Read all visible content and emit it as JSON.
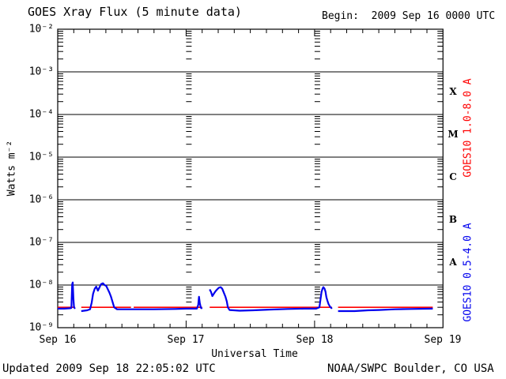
{
  "title": "GOES Xray Flux (5 minute data)",
  "begin_label": "Begin:  2009 Sep 16 0000 UTC",
  "footer": {
    "updated": "Updated 2009 Sep 18 22:05:02 UTC",
    "source": "NOAA/SWPC Boulder, CO USA"
  },
  "axes": {
    "ylabel": "Watts m⁻²",
    "xlabel": "Universal Time",
    "x_tick_labels": [
      "Sep 16",
      "Sep 17",
      "Sep 18",
      "Sep 19"
    ],
    "y_tick_labels": [
      "10⁻²",
      "10⁻³",
      "10⁻⁴",
      "10⁻⁵",
      "10⁻⁶",
      "10⁻⁷",
      "10⁻⁸",
      "10⁻⁹"
    ],
    "flare_class_labels": [
      "X",
      "M",
      "C",
      "B",
      "A"
    ]
  },
  "legend": {
    "red_label": "GOES10 1.0-8.0 A",
    "blue_label": "GOES10 0.5-4.0 A"
  },
  "colors": {
    "red": "#ff0000",
    "blue": "#0000ee",
    "axis": "#000000",
    "background": "#ffffff"
  },
  "chart_data": {
    "type": "line",
    "title": "GOES Xray Flux (5 minute data)",
    "x_unit": "hours since 2009 Sep 16 0000 UTC",
    "x_range_hours": [
      0,
      72
    ],
    "y_scale": "log10",
    "y_range": [
      1e-09,
      0.01
    ],
    "grid": "horizontal decade lines; minor log ticks at frame edges and day boundaries",
    "x_major_tick_hours": 24,
    "x_minor_tick_hours": 3,
    "series": [
      {
        "name": "GOES10 1.0-8.0 A",
        "color_key": "red",
        "stroke_width": 1.6,
        "segments": [
          [
            [
              0,
              3e-09
            ],
            [
              3.25,
              3e-09
            ]
          ],
          [
            [
              4.4,
              3e-09
            ],
            [
              13.7,
              3e-09
            ]
          ],
          [
            [
              14.2,
              3e-09
            ],
            [
              27.0,
              3e-09
            ]
          ],
          [
            [
              28.4,
              3e-09
            ],
            [
              51.25,
              3e-09
            ]
          ],
          [
            [
              52.4,
              3e-09
            ],
            [
              70.1,
              3e-09
            ]
          ]
        ]
      },
      {
        "name": "GOES10 0.5-4.0 A",
        "color_key": "blue",
        "stroke_width": 2.2,
        "segments": [
          [
            [
              0,
              2.8e-09
            ],
            [
              1.2,
              2.8e-09
            ],
            [
              2.3,
              2.85e-09
            ],
            [
              2.55,
              2.9e-09
            ],
            [
              2.7,
              1.05e-08
            ],
            [
              2.8,
              1.15e-08
            ],
            [
              2.92,
              5e-09
            ],
            [
              3.05,
              3e-09
            ],
            [
              3.25,
              2.8e-09
            ]
          ],
          [
            [
              4.4,
              2.45e-09
            ],
            [
              5.5,
              2.55e-09
            ],
            [
              6.05,
              2.7e-09
            ],
            [
              6.35,
              3.9e-09
            ],
            [
              6.6,
              6.2e-09
            ],
            [
              6.9,
              8.1e-09
            ],
            [
              7.2,
              9.2e-09
            ],
            [
              7.5,
              7.4e-09
            ],
            [
              7.8,
              8.8e-09
            ],
            [
              8.1,
              1.05e-08
            ],
            [
              8.45,
              1.1e-08
            ],
            [
              8.75,
              1e-08
            ],
            [
              9.05,
              9.6e-09
            ],
            [
              9.35,
              8e-09
            ],
            [
              9.65,
              6.7e-09
            ],
            [
              9.95,
              5.4e-09
            ],
            [
              10.25,
              4e-09
            ],
            [
              10.55,
              3e-09
            ],
            [
              11.1,
              2.7e-09
            ],
            [
              14,
              2.7e-09
            ],
            [
              18,
              2.7e-09
            ],
            [
              22,
              2.75e-09
            ],
            [
              24,
              2.8e-09
            ],
            [
              26.0,
              2.8e-09
            ],
            [
              26.25,
              3.4e-09
            ],
            [
              26.4,
              5.3e-09
            ],
            [
              26.55,
              3.8e-09
            ],
            [
              26.75,
              2.95e-09
            ],
            [
              27.0,
              2.8e-09
            ]
          ],
          [
            [
              28.4,
              7.9e-09
            ],
            [
              28.65,
              6.9e-09
            ],
            [
              28.9,
              5.5e-09
            ],
            [
              29.2,
              6.3e-09
            ],
            [
              29.5,
              7.2e-09
            ],
            [
              29.8,
              7.9e-09
            ],
            [
              30.1,
              8.6e-09
            ],
            [
              30.45,
              8.9e-09
            ],
            [
              30.75,
              8.2e-09
            ],
            [
              31.05,
              6.6e-09
            ],
            [
              31.35,
              5.3e-09
            ],
            [
              31.6,
              4.1e-09
            ],
            [
              31.8,
              3e-09
            ],
            [
              32.1,
              2.6e-09
            ],
            [
              34,
              2.5e-09
            ],
            [
              36.5,
              2.55e-09
            ],
            [
              39.5,
              2.65e-09
            ],
            [
              43,
              2.75e-09
            ],
            [
              46,
              2.8e-09
            ],
            [
              48.3,
              2.8e-09
            ],
            [
              48.9,
              3e-09
            ],
            [
              49.1,
              4.5e-09
            ],
            [
              49.3,
              6.9e-09
            ],
            [
              49.5,
              8.3e-09
            ],
            [
              49.65,
              8.9e-09
            ],
            [
              49.85,
              8.3e-09
            ],
            [
              50.05,
              7e-09
            ],
            [
              50.2,
              5.2e-09
            ],
            [
              50.4,
              4.3e-09
            ],
            [
              50.6,
              3.6e-09
            ],
            [
              50.9,
              3.1e-09
            ],
            [
              51.25,
              2.8e-09
            ]
          ],
          [
            [
              52.4,
              2.45e-09
            ],
            [
              55.5,
              2.45e-09
            ],
            [
              58,
              2.55e-09
            ],
            [
              60,
              2.6e-09
            ],
            [
              63,
              2.7e-09
            ],
            [
              66,
              2.75e-09
            ],
            [
              70.1,
              2.8e-09
            ]
          ]
        ]
      }
    ]
  }
}
